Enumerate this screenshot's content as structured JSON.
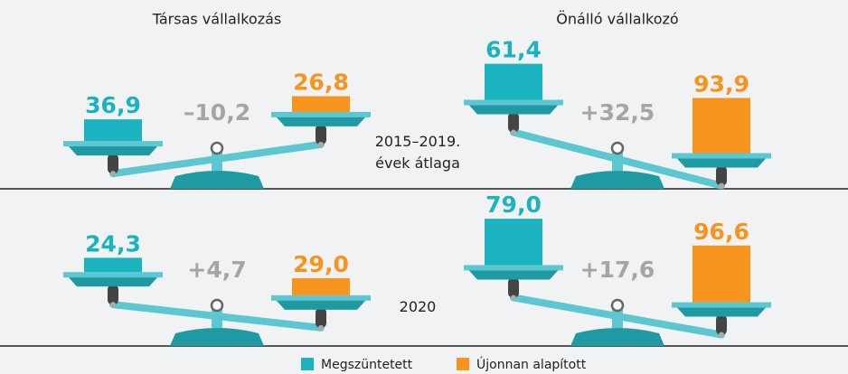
{
  "chart_data": {
    "type": "balance",
    "columns": [
      "Társas vállalkozás",
      "Önálló vállalkozó"
    ],
    "rows": [
      "2015–2019. évek átlaga",
      "2020"
    ],
    "series": [
      {
        "name": "Megszüntetett",
        "color": "#1bb3bf",
        "values": [
          36.9,
          61.4,
          24.3,
          79.0
        ],
        "value_labels": [
          "36,9",
          "61,4",
          "24,3",
          "79,0"
        ]
      },
      {
        "name": "Újonnan alapított",
        "color": "#f7941d",
        "values": [
          26.8,
          93.9,
          29.0,
          96.6
        ],
        "value_labels": [
          "26,8",
          "93,9",
          "29,0",
          "96,6"
        ]
      }
    ],
    "differences": {
      "values": [
        -10.2,
        32.5,
        4.7,
        17.6
      ],
      "value_labels": [
        "–10,2",
        "+32,5",
        "+4,7",
        "+17,6"
      ]
    }
  }
}
